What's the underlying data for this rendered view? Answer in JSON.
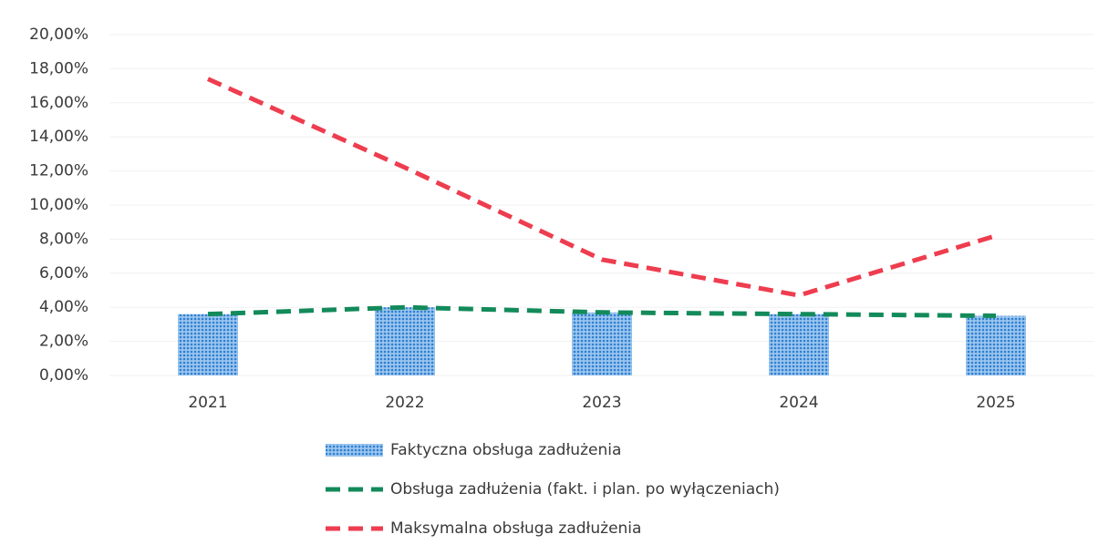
{
  "chart_data": {
    "type": "bar",
    "categories": [
      "2021",
      "2022",
      "2023",
      "2024",
      "2025"
    ],
    "series": [
      {
        "name": "Faktyczna obsługa zadłużenia",
        "type": "bar",
        "color": "#3b87d6",
        "values": [
          3.6,
          4.0,
          3.7,
          3.6,
          3.5
        ]
      },
      {
        "name": "Obsługa zadłużenia (fakt. i plan. po wyłączeniach)",
        "type": "line",
        "color": "#138a5a",
        "values": [
          3.6,
          4.0,
          3.7,
          3.6,
          3.5
        ]
      },
      {
        "name": "Maksymalna obsługa zadłużenia",
        "type": "line",
        "color": "#ee3d4f",
        "values": [
          17.4,
          12.2,
          6.8,
          4.7,
          8.2
        ]
      }
    ],
    "ylim": [
      0,
      20
    ],
    "yticks": [
      {
        "value": 0,
        "label": "0,00%"
      },
      {
        "value": 2,
        "label": "2,00%"
      },
      {
        "value": 4,
        "label": "4,00%"
      },
      {
        "value": 6,
        "label": "6,00%"
      },
      {
        "value": 8,
        "label": "8,00%"
      },
      {
        "value": 10,
        "label": "10,00%"
      },
      {
        "value": 12,
        "label": "12,00%"
      },
      {
        "value": 14,
        "label": "14,00%"
      },
      {
        "value": 16,
        "label": "16,00%"
      },
      {
        "value": 18,
        "label": "18,00%"
      },
      {
        "value": 20,
        "label": "20,00%"
      }
    ],
    "grid": true,
    "legend": "bottom"
  }
}
